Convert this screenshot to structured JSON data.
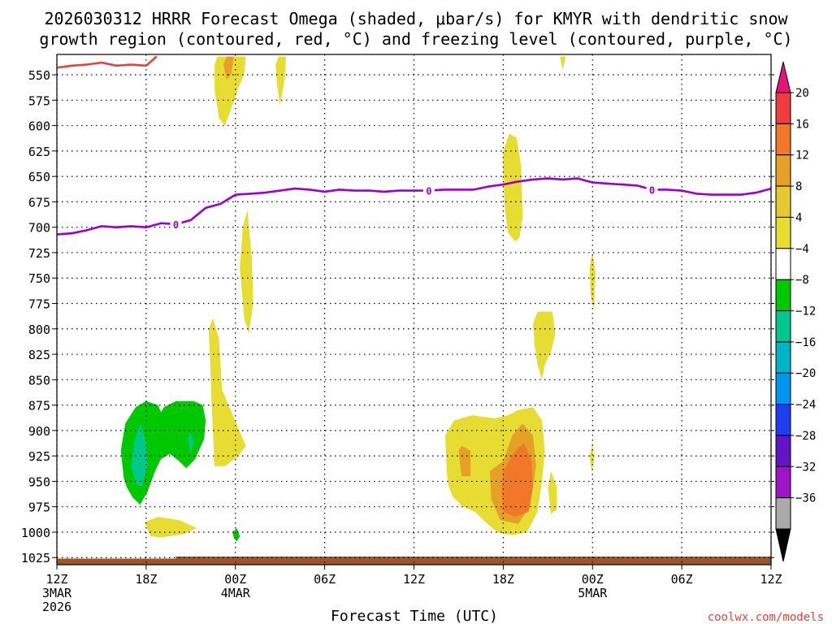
{
  "chart_data": {
    "type": "time-height contour",
    "title_line1": "2026030312 HRRR Forecast Omega (shaded, μbar/s) for KMYR with dendritic snow",
    "title_line2": "growth region (contoured, red, °C) and freezing level (contoured, purple, °C)",
    "xlabel": "Forecast Time (UTC)",
    "credit": "coolwx.com/models",
    "x_range_hours": [
      0,
      48
    ],
    "y_range_hPa": [
      530,
      1032
    ],
    "y_ticks": [
      {
        "v": 550,
        "label": "550"
      },
      {
        "v": 575,
        "label": "575"
      },
      {
        "v": 600,
        "label": "600"
      },
      {
        "v": 625,
        "label": "625"
      },
      {
        "v": 650,
        "label": "650"
      },
      {
        "v": 675,
        "label": "675"
      },
      {
        "v": 700,
        "label": "700"
      },
      {
        "v": 725,
        "label": "725"
      },
      {
        "v": 750,
        "label": "750"
      },
      {
        "v": 775,
        "label": "775"
      },
      {
        "v": 800,
        "label": "800"
      },
      {
        "v": 825,
        "label": "825"
      },
      {
        "v": 850,
        "label": "850"
      },
      {
        "v": 875,
        "label": "875"
      },
      {
        "v": 900,
        "label": "900"
      },
      {
        "v": 925,
        "label": "925"
      },
      {
        "v": 950,
        "label": "950"
      },
      {
        "v": 975,
        "label": "975"
      },
      {
        "v": 1000,
        "label": "1000"
      },
      {
        "v": 1025,
        "label": "1025"
      }
    ],
    "x_ticks": [
      {
        "h": 0,
        "lines": [
          "12Z",
          "3MAR",
          "2026"
        ]
      },
      {
        "h": 6,
        "lines": [
          "18Z"
        ]
      },
      {
        "h": 12,
        "lines": [
          "00Z",
          "4MAR"
        ]
      },
      {
        "h": 18,
        "lines": [
          "06Z"
        ]
      },
      {
        "h": 24,
        "lines": [
          "12Z"
        ]
      },
      {
        "h": 30,
        "lines": [
          "18Z"
        ]
      },
      {
        "h": 36,
        "lines": [
          "00Z",
          "5MAR"
        ]
      },
      {
        "h": 42,
        "lines": [
          "06Z"
        ]
      },
      {
        "h": 48,
        "lines": [
          "12Z"
        ]
      }
    ],
    "colorbar": {
      "labels": [
        "20",
        "16",
        "12",
        "8",
        "4",
        "−4",
        "−8",
        "−12",
        "−16",
        "−20",
        "−24",
        "−28",
        "−32",
        "−36"
      ],
      "colors": [
        "#f03c3c",
        "#f07828",
        "#e6a028",
        "#e6c832",
        "#e6dc32",
        "#ffffff",
        "#00c800",
        "#00c88c",
        "#00b4c8",
        "#0096f0",
        "#1e3cf0",
        "#6414c8",
        "#a014c8",
        "#aaaaaa"
      ],
      "top_arrow_color": "#e6147a",
      "bottom_arrow_color": "#000000"
    },
    "series": [
      {
        "name": "freezing level 0°C",
        "color": "#9b00d3",
        "label": "0",
        "label_hours": [
          8,
          25,
          40
        ],
        "points": [
          [
            0,
            707
          ],
          [
            1,
            706
          ],
          [
            2,
            703
          ],
          [
            3,
            699
          ],
          [
            4,
            700
          ],
          [
            5,
            699
          ],
          [
            6,
            700
          ],
          [
            7,
            696
          ],
          [
            8,
            697
          ],
          [
            9,
            693
          ],
          [
            10,
            681
          ],
          [
            11,
            677
          ],
          [
            12,
            668
          ],
          [
            13,
            667
          ],
          [
            14,
            666
          ],
          [
            15,
            664
          ],
          [
            16,
            662
          ],
          [
            17,
            663
          ],
          [
            18,
            665
          ],
          [
            19,
            663
          ],
          [
            20,
            664
          ],
          [
            21,
            664
          ],
          [
            22,
            665
          ],
          [
            23,
            664
          ],
          [
            24,
            664
          ],
          [
            25,
            664
          ],
          [
            26,
            663
          ],
          [
            27,
            663
          ],
          [
            28,
            663
          ],
          [
            29,
            660
          ],
          [
            30,
            658
          ],
          [
            31,
            655
          ],
          [
            32,
            653
          ],
          [
            33,
            652
          ],
          [
            34,
            653
          ],
          [
            35,
            652
          ],
          [
            36,
            656
          ],
          [
            37,
            657
          ],
          [
            38,
            658
          ],
          [
            39,
            659
          ],
          [
            40,
            663
          ],
          [
            41,
            663
          ],
          [
            42,
            664
          ],
          [
            43,
            667
          ],
          [
            44,
            668
          ],
          [
            45,
            668
          ],
          [
            46,
            668
          ],
          [
            47,
            666
          ],
          [
            48,
            662
          ]
        ]
      },
      {
        "name": "dendritic growth region (-12 to -18°C)",
        "color": "#e8403a",
        "points": [
          [
            0,
            543
          ],
          [
            1,
            541
          ],
          [
            2,
            540
          ],
          [
            3,
            538
          ],
          [
            4,
            541
          ],
          [
            5,
            540
          ],
          [
            6,
            541
          ],
          [
            6.7,
            532
          ]
        ]
      }
    ],
    "omega_regions": [
      {
        "name": "uplift lower-left, -4",
        "fill": "#00c800",
        "points": [
          [
            4.5,
            947
          ],
          [
            4.3,
            920
          ],
          [
            4.6,
            893
          ],
          [
            5.3,
            877
          ],
          [
            6.0,
            871
          ],
          [
            6.8,
            875
          ],
          [
            7.0,
            882
          ],
          [
            7.2,
            877
          ],
          [
            8.0,
            871
          ],
          [
            9.2,
            871
          ],
          [
            9.8,
            875
          ],
          [
            10.0,
            890
          ],
          [
            9.9,
            908
          ],
          [
            9.3,
            928
          ],
          [
            8.7,
            937
          ],
          [
            8.2,
            930
          ],
          [
            7.6,
            923
          ],
          [
            7.0,
            928
          ],
          [
            6.6,
            940
          ],
          [
            6.1,
            960
          ],
          [
            5.6,
            973
          ],
          [
            5.1,
            966
          ],
          [
            4.7,
            956
          ]
        ]
      },
      {
        "name": "uplift lower-left, -8",
        "fill": "#00c88c",
        "points": [
          [
            5.0,
            935
          ],
          [
            5.2,
            912
          ],
          [
            5.6,
            893
          ],
          [
            6.0,
            912
          ],
          [
            6.1,
            935
          ],
          [
            5.7,
            955
          ],
          [
            5.3,
            952
          ]
        ]
      },
      {
        "name": "uplift small, -8",
        "fill": "#00c88c",
        "points": [
          [
            8.8,
            908
          ],
          [
            9.0,
            902
          ],
          [
            9.2,
            912
          ],
          [
            9.0,
            922
          ]
        ]
      },
      {
        "name": "uplift near 1000 hPa",
        "fill": "#00c800",
        "points": [
          [
            11.8,
            1000
          ],
          [
            12.1,
            996
          ],
          [
            12.3,
            1004
          ],
          [
            12.1,
            1009
          ],
          [
            11.9,
            1006
          ]
        ]
      },
      {
        "name": "sinking 1005 hPa",
        "fill": "#e6dc32",
        "points": [
          [
            5.9,
            990
          ],
          [
            6.8,
            985
          ],
          [
            8.2,
            988
          ],
          [
            9.4,
            996
          ],
          [
            8.5,
            1002
          ],
          [
            7.0,
            1005
          ],
          [
            6.3,
            1004
          ]
        ]
      },
      {
        "name": "sinking column near 00Z",
        "fill": "#e6dc32",
        "points": [
          [
            10.2,
            800
          ],
          [
            10.5,
            790
          ],
          [
            10.9,
            810
          ],
          [
            11.1,
            860
          ],
          [
            11.6,
            877
          ],
          [
            12.2,
            898
          ],
          [
            12.7,
            915
          ],
          [
            12.2,
            925
          ],
          [
            11.3,
            935
          ],
          [
            10.6,
            935
          ],
          [
            10.4,
            875
          ],
          [
            10.3,
            830
          ]
        ]
      },
      {
        "name": "sinking 700-800 hPa",
        "fill": "#e6dc32",
        "points": [
          [
            12.3,
            740
          ],
          [
            12.5,
            700
          ],
          [
            12.8,
            683
          ],
          [
            13.1,
            730
          ],
          [
            13.2,
            775
          ],
          [
            12.9,
            805
          ],
          [
            12.6,
            790
          ]
        ]
      },
      {
        "name": "sinking upper 550-600",
        "fill": "#e6dc32",
        "points": [
          [
            10.6,
            540
          ],
          [
            10.8,
            532
          ],
          [
            12.7,
            532
          ],
          [
            12.6,
            548
          ],
          [
            12.2,
            563
          ],
          [
            11.8,
            580
          ],
          [
            11.3,
            600
          ],
          [
            10.9,
            593
          ],
          [
            10.6,
            565
          ]
        ]
      },
      {
        "name": "sinking upper 550-600, 8",
        "fill": "#e6a028",
        "points": [
          [
            11.2,
            540
          ],
          [
            11.4,
            532
          ],
          [
            11.9,
            532
          ],
          [
            11.7,
            550
          ],
          [
            11.4,
            555
          ]
        ]
      },
      {
        "name": "sinking upper narrow",
        "fill": "#e6dc32",
        "points": [
          [
            14.7,
            540
          ],
          [
            14.9,
            532
          ],
          [
            15.4,
            532
          ],
          [
            15.3,
            555
          ],
          [
            15.0,
            580
          ],
          [
            14.8,
            560
          ]
        ]
      },
      {
        "name": "sinking 620-700 hPa",
        "fill": "#e6dc32",
        "points": [
          [
            30.0,
            650
          ],
          [
            30.0,
            625
          ],
          [
            30.4,
            608
          ],
          [
            30.9,
            612
          ],
          [
            31.2,
            640
          ],
          [
            31.3,
            690
          ],
          [
            31.1,
            710
          ],
          [
            30.8,
            714
          ],
          [
            30.3,
            705
          ],
          [
            30.1,
            680
          ]
        ]
      },
      {
        "name": "sinking top narrow",
        "fill": "#e6dc32",
        "points": [
          [
            33.8,
            532
          ],
          [
            34.2,
            532
          ],
          [
            34.0,
            545
          ]
        ]
      },
      {
        "name": "sinking 720-780 hPa",
        "fill": "#e6dc32",
        "points": [
          [
            35.8,
            740
          ],
          [
            36.0,
            725
          ],
          [
            36.2,
            745
          ],
          [
            36.1,
            780
          ],
          [
            35.9,
            770
          ]
        ]
      },
      {
        "name": "sinking 780-850 hPa",
        "fill": "#e6dc32",
        "points": [
          [
            32.0,
            795
          ],
          [
            32.3,
            783
          ],
          [
            33.3,
            783
          ],
          [
            33.5,
            805
          ],
          [
            33.2,
            823
          ],
          [
            32.8,
            835
          ],
          [
            32.6,
            850
          ],
          [
            32.3,
            835
          ],
          [
            32.1,
            815
          ]
        ]
      },
      {
        "name": "sinking small 925",
        "fill": "#e6dc32",
        "points": [
          [
            35.8,
            925
          ],
          [
            36.0,
            912
          ],
          [
            36.1,
            930
          ],
          [
            35.95,
            940
          ]
        ]
      },
      {
        "name": "sinking small 950-980",
        "fill": "#e6dc32",
        "points": [
          [
            33.0,
            955
          ],
          [
            33.2,
            940
          ],
          [
            33.6,
            955
          ],
          [
            33.6,
            978
          ],
          [
            33.2,
            982
          ]
        ]
      },
      {
        "name": "sinking lower main, 4",
        "fill": "#e6dc32",
        "points": [
          [
            26.2,
            940
          ],
          [
            26.1,
            905
          ],
          [
            26.7,
            890
          ],
          [
            27.9,
            885
          ],
          [
            29.4,
            888
          ],
          [
            30.3,
            885
          ],
          [
            31.0,
            880
          ],
          [
            32.0,
            877
          ],
          [
            32.6,
            890
          ],
          [
            32.8,
            920
          ],
          [
            32.6,
            950
          ],
          [
            32.3,
            980
          ],
          [
            31.6,
            1000
          ],
          [
            30.6,
            1003
          ],
          [
            29.6,
            1000
          ],
          [
            28.8,
            990
          ],
          [
            28.1,
            980
          ],
          [
            27.3,
            975
          ],
          [
            26.6,
            965
          ],
          [
            26.3,
            953
          ]
        ]
      },
      {
        "name": "sinking lower main, 8",
        "fill": "#e6a028",
        "points": [
          [
            30.0,
            930
          ],
          [
            30.6,
            905
          ],
          [
            31.3,
            893
          ],
          [
            32.0,
            905
          ],
          [
            32.2,
            935
          ],
          [
            31.8,
            975
          ],
          [
            31.0,
            992
          ],
          [
            29.8,
            988
          ],
          [
            29.2,
            968
          ],
          [
            29.1,
            940
          ]
        ]
      },
      {
        "name": "sinking lower small, 8",
        "fill": "#e6a028",
        "points": [
          [
            27.0,
            920
          ],
          [
            27.2,
            915
          ],
          [
            27.8,
            920
          ],
          [
            27.8,
            945
          ],
          [
            27.2,
            945
          ]
        ]
      },
      {
        "name": "sinking lower main, 12",
        "fill": "#f07828",
        "points": [
          [
            30.0,
            940
          ],
          [
            30.8,
            920
          ],
          [
            31.4,
            912
          ],
          [
            31.9,
            930
          ],
          [
            32.0,
            955
          ],
          [
            31.7,
            980
          ],
          [
            30.8,
            985
          ],
          [
            30.0,
            980
          ],
          [
            29.9,
            960
          ]
        ]
      }
    ],
    "ground_color": "#a0522d"
  }
}
